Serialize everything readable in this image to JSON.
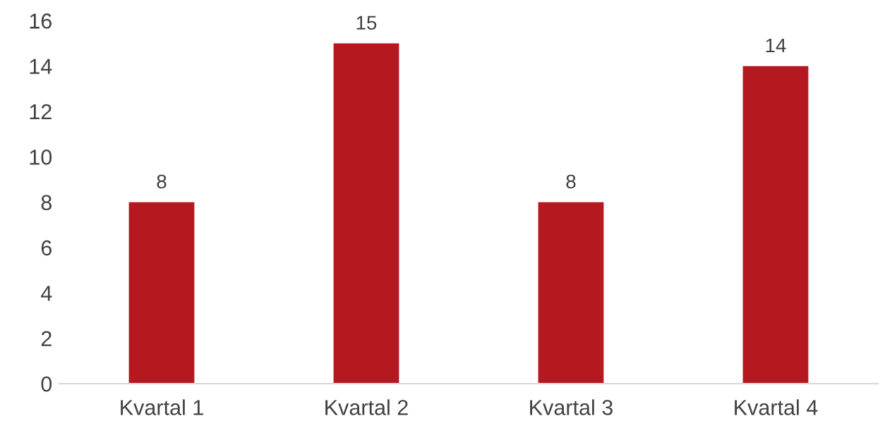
{
  "chart_data": {
    "type": "bar",
    "categories": [
      "Kvartal 1",
      "Kvartal 2",
      "Kvartal 3",
      "Kvartal 4"
    ],
    "values": [
      8,
      15,
      8,
      14
    ],
    "color": "#b5191f",
    "ylim": [
      0,
      16
    ],
    "yticks": [
      0,
      2,
      4,
      6,
      8,
      10,
      12,
      14,
      16
    ],
    "grid": false,
    "data_labels": true
  }
}
